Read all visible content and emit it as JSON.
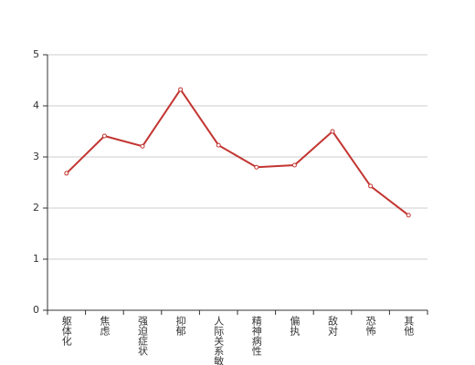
{
  "chart_data": {
    "type": "line",
    "categories": [
      "躯体化",
      "焦虑",
      "强迫症状",
      "抑郁",
      "人际关系敏感",
      "精神病性",
      "偏执",
      "敌对",
      "恐怖",
      "其他"
    ],
    "series": [
      {
        "color": "#c23531",
        "values": [
          2.68,
          3.41,
          3.21,
          4.32,
          3.23,
          2.8,
          2.84,
          3.5,
          2.43,
          1.86
        ]
      }
    ],
    "ylim": [
      0,
      5
    ],
    "yticks": [
      0,
      1,
      2,
      3,
      4,
      5
    ],
    "grid": true
  }
}
